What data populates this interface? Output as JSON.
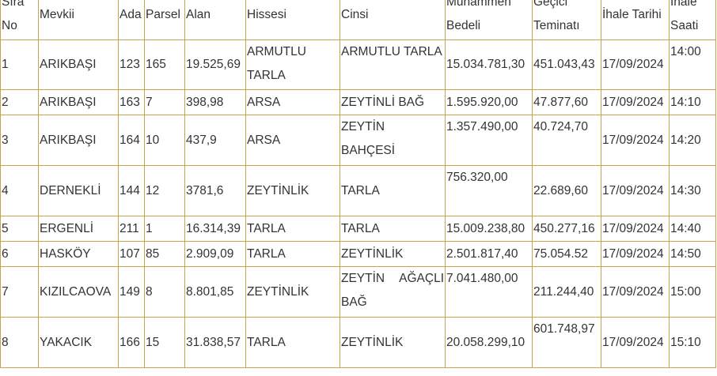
{
  "headers": {
    "sira_no": "Sıra No",
    "mevkii": "Mevkii",
    "ada": "Ada",
    "parsel": "Parsel",
    "alan": "Alan",
    "hissesi": "Hissesi",
    "cinsi": "Cinsi",
    "muhammen_bedeli": "Muhammen Bedeli",
    "gecici_teminati": "Geçici Teminatı",
    "ihale_tarihi": "İhale Tarihi",
    "ihale_saati": "İhale Saati"
  },
  "rows": [
    {
      "no": "1",
      "mevkii": "ARIKBAŞI",
      "ada": "123",
      "parsel": "165",
      "alan": "19.525,69",
      "hissesi": "ARMUTLU TARLA",
      "cinsi": "ARMUTLU TARLA",
      "muhammen": "15.034.781,30",
      "teminat": "451.043,43",
      "tarih": "17/09/2024",
      "saat": "14:00"
    },
    {
      "no": "2",
      "mevkii": "ARIKBAŞI",
      "ada": "163",
      "parsel": "7",
      "alan": "398,98",
      "hissesi": "ARSA",
      "cinsi": "ZEYTİNLİ BAĞ",
      "muhammen": "1.595.920,00",
      "teminat": "47.877,60",
      "tarih": "17/09/2024",
      "saat": "14:10"
    },
    {
      "no": "3",
      "mevkii": "ARIKBAŞI",
      "ada": "164",
      "parsel": "10",
      "alan": "437,9",
      "hissesi": "ARSA",
      "cinsi": "ZEYTİN BAHÇESİ",
      "muhammen": "1.357.490,00",
      "teminat": "40.724,70",
      "tarih": "17/09/2024",
      "saat": "14:20"
    },
    {
      "no": "4",
      "mevkii": "DERNEKLİ",
      "ada": "144",
      "parsel": "12",
      "alan": "3781,6",
      "hissesi": "ZEYTİNLİK",
      "cinsi": "TARLA",
      "muhammen": "756.320,00",
      "teminat": "22.689,60",
      "tarih": "17/09/2024",
      "saat": "14:30"
    },
    {
      "no": "5",
      "mevkii": "ERGENLİ",
      "ada": "211",
      "parsel": "1",
      "alan": "16.314,39",
      "hissesi": "TARLA",
      "cinsi": "TARLA",
      "muhammen": "15.009.238,80",
      "teminat": "450.277,16",
      "tarih": "17/09/2024",
      "saat": "14:40"
    },
    {
      "no": "6",
      "mevkii": "HASKÖY",
      "ada": "107",
      "parsel": "85",
      "alan": "2.909,09",
      "hissesi": "TARLA",
      "cinsi": "ZEYTİNLİK",
      "muhammen": "2.501.817,40",
      "teminat": "75.054.52",
      "tarih": "17/09/2024",
      "saat": "14:50"
    },
    {
      "no": "7",
      "mevkii": "KIZILCAOVA",
      "ada": "149",
      "parsel": "8",
      "alan": "8.801,85",
      "hissesi": "ZEYTİNLİK",
      "cinsi": "ZEYTİN AĞAÇLI BAĞ",
      "muhammen": "7.041.480,00",
      "teminat": "211.244,40",
      "tarih": "17/09/2024",
      "saat": "15:00"
    },
    {
      "no": "8",
      "mevkii": "YAKACIK",
      "ada": "166",
      "parsel": "15",
      "alan": "31.838,57",
      "hissesi": "TARLA",
      "cinsi": "ZEYTİNLİK",
      "muhammen": "20.058.299,10",
      "teminat": "601.748,97",
      "tarih": "17/09/2024",
      "saat": "15:10"
    }
  ]
}
